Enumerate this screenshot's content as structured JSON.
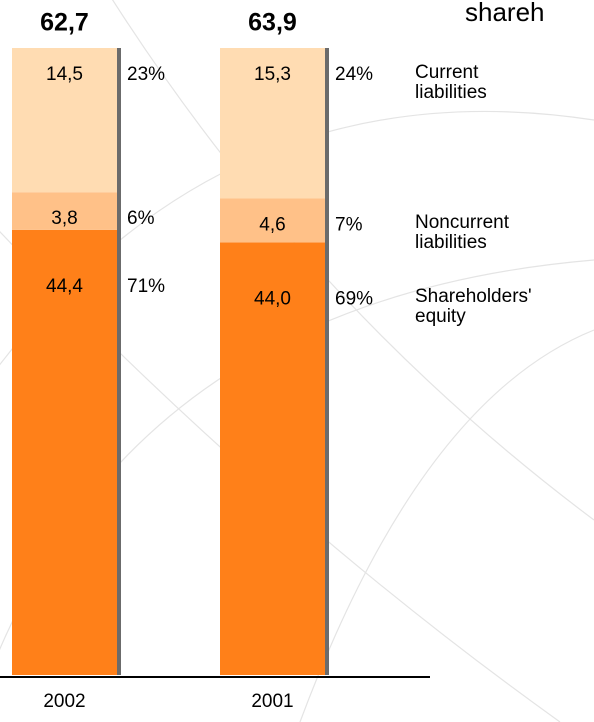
{
  "chart_data": {
    "type": "stacked_bar",
    "title": "shareh",
    "categories": [
      "2002",
      "2001"
    ],
    "totals": [
      62.7,
      63.9
    ],
    "total_labels": [
      "62,7",
      "63,9"
    ],
    "series": [
      {
        "name": "Shareholders' equity",
        "color": "#ff8019",
        "values": [
          44.4,
          44.0
        ],
        "value_labels": [
          "44,4",
          "44,0"
        ],
        "percents": [
          71,
          69
        ],
        "percent_labels": [
          "71%",
          "69%"
        ]
      },
      {
        "name": "Noncurrent liabilities",
        "color": "#ffc188",
        "values": [
          3.8,
          4.6
        ],
        "value_labels": [
          "3,8",
          "4,6"
        ],
        "percents": [
          6,
          7
        ],
        "percent_labels": [
          "6%",
          "7%"
        ]
      },
      {
        "name": "Current liabilities",
        "color": "#ffdcb2",
        "values": [
          14.5,
          15.3
        ],
        "value_labels": [
          "14,5",
          "15,3"
        ],
        "percents": [
          23,
          24
        ],
        "percent_labels": [
          "23%",
          "24%"
        ]
      }
    ]
  }
}
